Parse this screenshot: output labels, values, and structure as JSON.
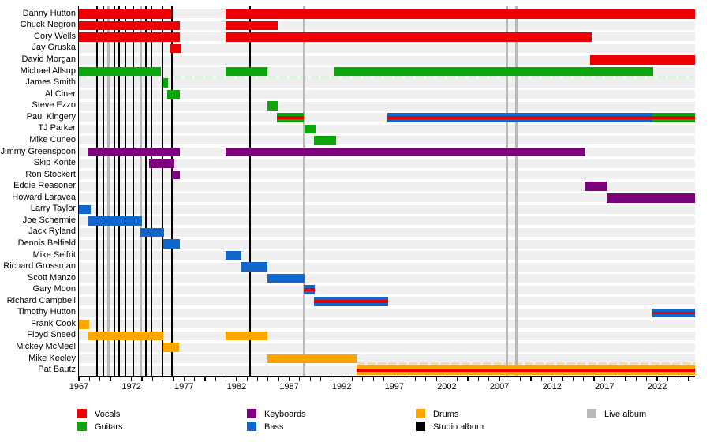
{
  "chart_data": {
    "type": "bar",
    "subtype": "gantt-timeline-band-members",
    "axis": {
      "start_year": 1967,
      "end_year": 2025.6,
      "tick_interval": 1,
      "label_interval": 5,
      "tick_labels": [
        1967,
        1972,
        1977,
        1982,
        1987,
        1992,
        1997,
        2002,
        2007,
        2012,
        2017,
        2022
      ]
    },
    "members": [
      {
        "name": "Danny Hutton",
        "segments": [
          {
            "start": 1967.0,
            "end": 1975.8,
            "role": "vocals"
          },
          {
            "start": 1980.93,
            "end": 2025.6,
            "role": "vocals"
          }
        ]
      },
      {
        "name": "Chuck Negron",
        "segments": [
          {
            "start": 1967.0,
            "end": 1976.58,
            "role": "vocals"
          },
          {
            "start": 1980.93,
            "end": 1985.89,
            "role": "vocals"
          }
        ]
      },
      {
        "name": "Cory Wells",
        "segments": [
          {
            "start": 1967.0,
            "end": 1976.58,
            "role": "vocals"
          },
          {
            "start": 1980.93,
            "end": 2015.77,
            "role": "vocals"
          }
        ]
      },
      {
        "name": "Jay Gruska",
        "segments": [
          {
            "start": 1975.71,
            "end": 1976.72,
            "role": "vocals"
          }
        ]
      },
      {
        "name": "David Morgan",
        "segments": [
          {
            "start": 2015.65,
            "end": 2025.6,
            "role": "vocals"
          }
        ]
      },
      {
        "name": "Michael Allsup",
        "segments": [
          {
            "start": 1967.0,
            "end": 1974.8,
            "role": "guitars"
          },
          {
            "start": 1980.95,
            "end": 1984.94,
            "role": "guitars"
          },
          {
            "start": 1991.31,
            "end": 2021.66,
            "role": "guitars"
          }
        ]
      },
      {
        "name": "James Smith",
        "segments": [
          {
            "start": 1974.95,
            "end": 1975.45,
            "role": "guitars"
          }
        ]
      },
      {
        "name": "Al Ciner",
        "segments": [
          {
            "start": 1975.4,
            "end": 1976.58,
            "role": "guitars"
          }
        ]
      },
      {
        "name": "Steve Ezzo",
        "segments": [
          {
            "start": 1984.91,
            "end": 1985.93,
            "role": "guitars"
          }
        ]
      },
      {
        "name": "Paul Kingery",
        "segments": [
          {
            "start": 1985.81,
            "end": 1988.41,
            "role": "guitars",
            "stripe": "vocals"
          },
          {
            "start": 1996.34,
            "end": 2021.53,
            "role": "bass",
            "stripe": "vocals"
          },
          {
            "start": 2021.53,
            "end": 2025.6,
            "role": "guitars",
            "stripe": "vocals"
          }
        ]
      },
      {
        "name": "TJ Parker",
        "segments": [
          {
            "start": 1988.46,
            "end": 1989.51,
            "role": "guitars"
          }
        ]
      },
      {
        "name": "Mike Cuneo",
        "segments": [
          {
            "start": 1989.38,
            "end": 1991.46,
            "role": "guitars"
          }
        ]
      },
      {
        "name": "Jimmy Greenspoon",
        "segments": [
          {
            "start": 1967.92,
            "end": 1976.58,
            "role": "keyboards"
          },
          {
            "start": 1980.93,
            "end": 2015.15,
            "role": "keyboards"
          }
        ]
      },
      {
        "name": "Skip Konte",
        "segments": [
          {
            "start": 1973.7,
            "end": 1976.06,
            "role": "keyboards"
          }
        ]
      },
      {
        "name": "Ron Stockert",
        "segments": [
          {
            "start": 1975.88,
            "end": 1976.58,
            "role": "keyboards"
          }
        ]
      },
      {
        "name": "Eddie Reasoner",
        "segments": [
          {
            "start": 2015.1,
            "end": 2017.22,
            "role": "keyboards"
          }
        ]
      },
      {
        "name": "Howard Laravea",
        "segments": [
          {
            "start": 2017.22,
            "end": 2025.6,
            "role": "keyboards"
          }
        ]
      },
      {
        "name": "Larry Taylor",
        "segments": [
          {
            "start": 1967.0,
            "end": 1968.13,
            "role": "bass"
          }
        ]
      },
      {
        "name": "Joe Schermie",
        "segments": [
          {
            "start": 1967.92,
            "end": 1973.0,
            "role": "bass"
          }
        ]
      },
      {
        "name": "Jack Ryland",
        "segments": [
          {
            "start": 1972.83,
            "end": 1975.08,
            "role": "bass"
          }
        ]
      },
      {
        "name": "Dennis Belfield",
        "segments": [
          {
            "start": 1975.01,
            "end": 1976.58,
            "role": "bass"
          }
        ]
      },
      {
        "name": "Mike Seifrit",
        "segments": [
          {
            "start": 1980.95,
            "end": 1982.43,
            "role": "bass"
          }
        ]
      },
      {
        "name": "Richard Grossman",
        "segments": [
          {
            "start": 1982.38,
            "end": 1984.91,
            "role": "bass"
          }
        ]
      },
      {
        "name": "Scott Manzo",
        "segments": [
          {
            "start": 1984.91,
            "end": 1988.43,
            "role": "bass"
          }
        ]
      },
      {
        "name": "Gary Moon",
        "segments": [
          {
            "start": 1988.38,
            "end": 1989.43,
            "role": "bass",
            "stripe": "vocals"
          }
        ]
      },
      {
        "name": "Richard Campbell",
        "segments": [
          {
            "start": 1989.38,
            "end": 1996.39,
            "role": "bass",
            "stripe": "vocals"
          }
        ]
      },
      {
        "name": "Timothy Hutton",
        "segments": [
          {
            "start": 2021.53,
            "end": 2025.6,
            "role": "bass",
            "stripe": "vocals"
          }
        ]
      },
      {
        "name": "Frank Cook",
        "segments": [
          {
            "start": 1967.0,
            "end": 1968.0,
            "role": "drums"
          }
        ]
      },
      {
        "name": "Floyd Sneed",
        "segments": [
          {
            "start": 1967.92,
            "end": 1975.01,
            "role": "drums"
          },
          {
            "start": 1980.95,
            "end": 1984.96,
            "role": "drums"
          }
        ]
      },
      {
        "name": "Mickey McMeel",
        "segments": [
          {
            "start": 1974.93,
            "end": 1976.55,
            "role": "drums"
          }
        ]
      },
      {
        "name": "Mike Keeley",
        "segments": [
          {
            "start": 1984.96,
            "end": 1993.44,
            "role": "drums"
          }
        ]
      },
      {
        "name": "Pat Bautz",
        "segments": [
          {
            "start": 1993.39,
            "end": 2025.6,
            "role": "drums",
            "stripe": "vocals"
          }
        ]
      }
    ],
    "albums": {
      "studio_years": [
        1968.76,
        1969.36,
        1970.34,
        1970.86,
        1971.39,
        1972.14,
        1973.41,
        1973.94,
        1974.92,
        1975.82,
        1983.28
      ],
      "live_years": [
        1969.81,
        1972.89,
        1988.39,
        2007.67,
        2008.57
      ]
    },
    "legend": [
      {
        "label": "Vocals",
        "role": "vocals",
        "col": 0,
        "row": 0
      },
      {
        "label": "Guitars",
        "role": "guitars",
        "col": 0,
        "row": 1
      },
      {
        "label": "Keyboards",
        "role": "keyboards",
        "col": 1,
        "row": 0
      },
      {
        "label": "Bass",
        "role": "bass",
        "col": 1,
        "row": 1
      },
      {
        "label": "Drums",
        "role": "drums",
        "col": 2,
        "row": 0
      },
      {
        "label": "Studio album",
        "role": "studio_album",
        "col": 2,
        "row": 1
      },
      {
        "label": "Live album",
        "role": "live_album",
        "col": 3,
        "row": 0
      }
    ],
    "colors": {
      "vocals": "#EE0000",
      "guitars": "#0CA60C",
      "keyboards": "#7D007D",
      "bass": "#1166CC",
      "drums": "#FFA500",
      "studio_album": "#000000",
      "live_album": "#B9B9B9"
    }
  }
}
